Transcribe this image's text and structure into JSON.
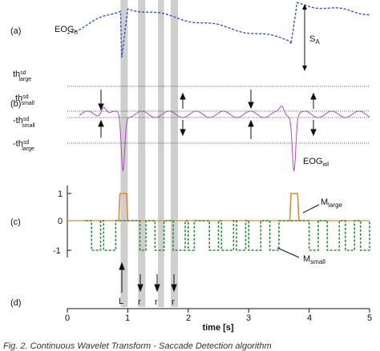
{
  "chart_data": {
    "type": "line",
    "time_axis": {
      "label": "time [s]",
      "ticks": [
        "0",
        "1",
        "2",
        "3",
        "4",
        "5"
      ],
      "range": [
        0,
        5
      ]
    },
    "panels": [
      {
        "id": "a",
        "label": "(a)",
        "series": [
          {
            "name": "EOGh",
            "style": "dashed",
            "color": "#2f56c7"
          }
        ],
        "annotations": [
          "SA"
        ]
      },
      {
        "id": "b",
        "label": "(b)",
        "series": [
          {
            "name": "EOGwl",
            "style": "solid",
            "color": "#b04ac0"
          }
        ],
        "thresholds": [
          "th_sd_large",
          "th_sd_small",
          "-th_sd_small",
          "-th_sd_large"
        ]
      },
      {
        "id": "c",
        "label": "(c)",
        "y_ticks": [
          "1",
          "0",
          "-1"
        ],
        "y_range": [
          -1,
          1
        ],
        "series": [
          {
            "name": "M_large",
            "style": "solid",
            "color": "#e08a3a"
          },
          {
            "name": "M_small",
            "style": "dashed",
            "color": "#2d8a3a"
          }
        ]
      },
      {
        "id": "d",
        "label": "(d)",
        "markers": [
          {
            "t": 0.92,
            "label": "L"
          },
          {
            "t": 1.22,
            "label": "r"
          },
          {
            "t": 1.55,
            "label": "r"
          },
          {
            "t": 1.76,
            "label": "r"
          }
        ]
      }
    ],
    "saccade_bands": [
      [
        0.88,
        1.0
      ],
      [
        1.17,
        1.29
      ],
      [
        1.5,
        1.6
      ],
      [
        1.71,
        1.83
      ]
    ]
  },
  "labels": {
    "a": "(a)",
    "b": "(b)",
    "c": "(c)",
    "d": "(d)",
    "eogh_main": "EOG",
    "eogh_sub": "h",
    "sa_main": "S",
    "sa_sub": "A",
    "th_large_main": "th",
    "th_large_sup": "sd",
    "th_large_sub": "large",
    "th_small_main": "th",
    "th_small_sup": "sd",
    "th_small_sub": "small",
    "nth_small_main": "-th",
    "nth_small_sup": "sd",
    "nth_small_sub": "small",
    "nth_large_main": "-th",
    "nth_large_sup": "sd",
    "nth_large_sub": "large",
    "eogwl_main": "EOG",
    "eogwl_sub": "wl",
    "mlarge_main": "M",
    "mlarge_sub": "large",
    "msmall_main": "M",
    "msmall_sub": "small",
    "y1": "1",
    "y0": "0",
    "ym1": "-1",
    "L": "L",
    "r1": "r",
    "r2": "r",
    "r3": "r",
    "xlabel": "time [s]",
    "xt0": "0",
    "xt1": "1",
    "xt2": "2",
    "xt3": "3",
    "xt4": "4",
    "xt5": "5",
    "caption": "Fig. 2. Continuous Wavelet Transform - Saccade Detection algorithm"
  }
}
